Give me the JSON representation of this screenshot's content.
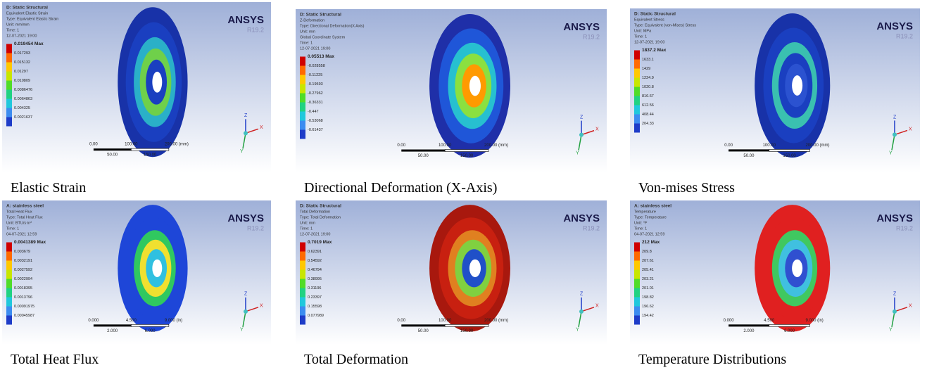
{
  "axis_triad": {
    "z": "Z",
    "x": "X",
    "y": "Y"
  },
  "panels": [
    {
      "header": [
        "D: Static Structural",
        "Equivalent Elastic Strain",
        "Type: Equivalent Elastic Strain",
        "Unit: mm/mm",
        "Time: 1",
        "12-07-2021 19:00"
      ],
      "legend": [
        "0.019454 Max",
        "0.017293",
        "0.015132",
        "0.01297",
        "0.010809",
        "0.0086476",
        "0.0064863",
        "0.004325",
        "0.0021637"
      ],
      "brand": "ANSYS",
      "version": "R19.2",
      "scale": [
        "0.00",
        "100.00",
        "200.00 (mm)",
        "50.00",
        "150.00"
      ],
      "caption": "Elastic Strain"
    },
    {
      "header": [
        "D: Static Structural",
        "Z-Deformation",
        "Type: Directional Deformation(X Axis)",
        "Unit: mm",
        "Global Coordinate System",
        "Time: 1",
        "12-07-2021 19:00"
      ],
      "legend": [
        "0.05513 Max",
        "-0.028558",
        "-0.11225",
        "-0.19593",
        "-0.27962",
        "-0.36331",
        "-0.447",
        "-0.53068",
        "-0.61437"
      ],
      "brand": "ANSYS",
      "version": "R19.2",
      "scale": [
        "0.00",
        "100.00",
        "200.00 (mm)",
        "50.00",
        "150.00"
      ],
      "caption": "Directional Deformation (X-Axis)"
    },
    {
      "header": [
        "D: Static Structural",
        "Equivalent Stress",
        "Type: Equivalent (von-Mises) Stress",
        "Unit: MPa",
        "Time: 1",
        "12-07-2021 19:00"
      ],
      "legend": [
        "1837.2 Max",
        "1633.1",
        "1429",
        "1224.9",
        "1020.8",
        "816.67",
        "612.56",
        "408.44",
        "204.33"
      ],
      "brand": "ANSYS",
      "version": "R19.2",
      "scale": [
        "0.00",
        "100.00",
        "200.00 (mm)",
        "50.00",
        "150.00"
      ],
      "caption": "Von-mises Stress"
    },
    {
      "header": [
        "A: stainless steel",
        "Total Heat Flux",
        "Type: Total Heat Flux",
        "Unit: BTU/s·in²",
        "Time: 1",
        "04-07-2021 12:59"
      ],
      "legend": [
        "0.0041389 Max",
        "0.003679",
        "0.0032191",
        "0.0027592",
        "0.0022994",
        "0.0018395",
        "0.0013796",
        "0.00091975",
        "0.00045987"
      ],
      "brand": "ANSYS",
      "version": "R19.2",
      "scale": [
        "0.000",
        "4.500",
        "9.000 (in)",
        "2.000",
        "6.000"
      ],
      "caption": "Total Heat Flux"
    },
    {
      "header": [
        "D: Static Structural",
        "Total Deformation",
        "Type: Total Deformation",
        "Unit: mm",
        "Time: 1",
        "12-07-2021 19:00"
      ],
      "legend": [
        "0.7019 Max",
        "0.62391",
        "0.54592",
        "0.46794",
        "0.38995",
        "0.31196",
        "0.23397",
        "0.15598",
        "0.077989"
      ],
      "brand": "ANSYS",
      "version": "R19.2",
      "scale": [
        "0.00",
        "100.00",
        "200.00 (mm)",
        "50.00",
        "150.00"
      ],
      "caption": "Total Deformation"
    },
    {
      "header": [
        "A: stainless steel",
        "Temperature",
        "Type: Temperature",
        "Unit: °F",
        "Time: 1",
        "04-07-2021 12:59"
      ],
      "legend": [
        "212 Max",
        "209.8",
        "207.61",
        "205.41",
        "203.21",
        "201.01",
        "198.82",
        "196.62",
        "194.42"
      ],
      "brand": "ANSYS",
      "version": "R19.2",
      "scale": [
        "0.000",
        "4.500",
        "9.000 (in)",
        "2.000",
        "6.000"
      ],
      "caption": "Temperature Distributions"
    }
  ]
}
